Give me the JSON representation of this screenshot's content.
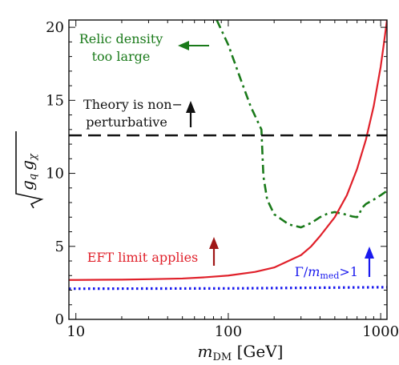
{
  "chart_data": {
    "type": "line",
    "title": "",
    "xscale": "log",
    "xlim": [
      9,
      1100
    ],
    "ylim": [
      0,
      20.5
    ],
    "xlabel": {
      "main": "m",
      "sub": "DM",
      "units": " [GeV]"
    },
    "ylabel": "√(g_q g_χ)",
    "x_ticks": [
      10,
      100,
      1000
    ],
    "x_tick_labels": [
      "10",
      "100",
      "1000"
    ],
    "y_ticks": [
      0,
      5,
      10,
      15,
      20
    ],
    "y_tick_labels": [
      "0",
      "5",
      "10",
      "15",
      "20"
    ],
    "grid": false,
    "legend": "none",
    "colors": {
      "relic": "#1a7a1a",
      "eft": "#e0202a",
      "width": "#1a1aee",
      "perturbative": "#111111",
      "eft_arrow": "#a01818",
      "width_arrow": "#1a1aee"
    },
    "series": [
      {
        "key": "relic",
        "style": "dash-dot",
        "x": [
          84,
          100,
          120,
          140,
          160,
          165,
          170,
          180,
          200,
          250,
          300,
          350,
          400,
          450,
          500,
          520,
          560,
          600,
          650,
          700,
          720,
          750,
          800,
          900,
          1000,
          1100
        ],
        "y": [
          20.5,
          18.8,
          16.5,
          14.6,
          13.3,
          13.0,
          9.8,
          8.2,
          7.2,
          6.5,
          6.3,
          6.6,
          7.0,
          7.25,
          7.35,
          7.3,
          7.25,
          7.15,
          7.05,
          7.0,
          7.15,
          7.6,
          7.9,
          8.2,
          8.5,
          8.8
        ]
      },
      {
        "key": "eft",
        "style": "solid",
        "x": [
          9,
          10,
          20,
          30,
          50,
          70,
          100,
          150,
          200,
          300,
          350,
          400,
          500,
          600,
          700,
          800,
          900,
          1000,
          1050,
          1100
        ],
        "y": [
          2.7,
          2.7,
          2.72,
          2.75,
          2.8,
          2.88,
          3.0,
          3.25,
          3.55,
          4.4,
          5.0,
          5.7,
          7.0,
          8.5,
          10.3,
          12.3,
          14.6,
          17.3,
          18.9,
          20.5
        ]
      },
      {
        "key": "width",
        "style": "dotted",
        "x": [
          9,
          10,
          100,
          1000,
          1100
        ],
        "y": [
          2.1,
          2.1,
          2.12,
          2.2,
          2.2
        ]
      },
      {
        "key": "perturbative",
        "style": "dashed",
        "x": [
          9,
          1100
        ],
        "y": [
          12.6,
          12.6
        ]
      }
    ],
    "annotations": {
      "relic_line1": "Relic density",
      "relic_line2": "too large",
      "theory_line1": "Theory is non−",
      "theory_line2": "perturbative",
      "eft": "EFT limit applies",
      "width_gamma": "Γ/",
      "width_m": "m",
      "width_sub": "med",
      "width_rel": ">1"
    }
  }
}
